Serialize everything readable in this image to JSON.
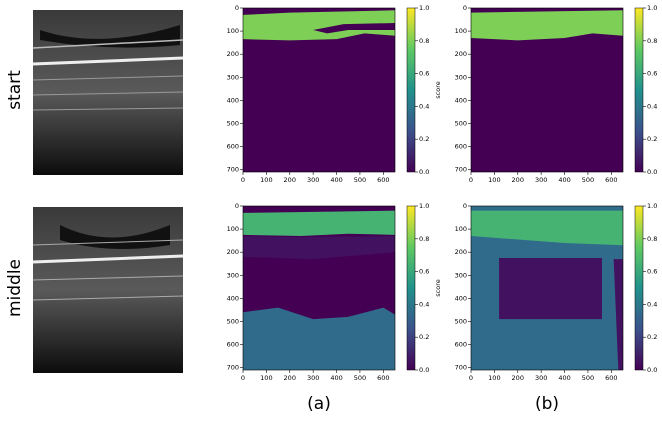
{
  "chart_data": {
    "type": "heatmap-grid",
    "columns": [
      "(a)",
      "(b)"
    ],
    "colormap": "viridis",
    "colorbar_label": "score",
    "xlim": [
      0,
      650
    ],
    "ylim": [
      0,
      710
    ],
    "y_inverted": true,
    "xticks": [
      0,
      100,
      200,
      300,
      400,
      500,
      600
    ],
    "yticks": [
      0,
      100,
      200,
      300,
      400,
      500,
      600,
      700
    ],
    "clim": [
      0,
      1
    ],
    "cticks": [
      {
        "value": 0,
        "label": "0.0"
      },
      {
        "value": 0.2,
        "label": "0.2"
      },
      {
        "value": 0.4,
        "label": "0.4"
      },
      {
        "value": 0.6,
        "label": "0.6"
      },
      {
        "value": 0.8,
        "label": "0.8"
      },
      {
        "value": 1,
        "label": "1.0"
      }
    ],
    "rows": [
      {
        "label": "start",
        "panels": [
          {
            "background": 0.0,
            "regions": [
              {
                "score": 0.8,
                "points": [
                  [
                    0,
                    30
                  ],
                  [
                    200,
                    20
                  ],
                  [
                    650,
                    10
                  ],
                  [
                    650,
                    120
                  ],
                  [
                    520,
                    110
                  ],
                  [
                    400,
                    135
                  ],
                  [
                    200,
                    140
                  ],
                  [
                    0,
                    135
                  ]
                ]
              },
              {
                "score": 0.0,
                "points": [
                  [
                    300,
                    95
                  ],
                  [
                    430,
                    70
                  ],
                  [
                    650,
                    65
                  ],
                  [
                    650,
                    95
                  ],
                  [
                    450,
                    95
                  ],
                  [
                    360,
                    110
                  ]
                ]
              }
            ]
          },
          {
            "background": 0.0,
            "regions": [
              {
                "score": 0.8,
                "points": [
                  [
                    0,
                    20
                  ],
                  [
                    300,
                    15
                  ],
                  [
                    650,
                    10
                  ],
                  [
                    650,
                    120
                  ],
                  [
                    520,
                    110
                  ],
                  [
                    400,
                    130
                  ],
                  [
                    200,
                    140
                  ],
                  [
                    0,
                    130
                  ]
                ]
              }
            ]
          }
        ]
      },
      {
        "label": "middle",
        "panels": [
          {
            "background": 0.0,
            "regions": [
              {
                "score": 0.65,
                "points": [
                  [
                    0,
                    30
                  ],
                  [
                    650,
                    20
                  ],
                  [
                    650,
                    125
                  ],
                  [
                    450,
                    120
                  ],
                  [
                    250,
                    130
                  ],
                  [
                    0,
                    125
                  ]
                ]
              },
              {
                "score": 0.05,
                "points": [
                  [
                    0,
                    130
                  ],
                  [
                    250,
                    135
                  ],
                  [
                    650,
                    130
                  ],
                  [
                    650,
                    200
                  ],
                  [
                    300,
                    230
                  ],
                  [
                    0,
                    220
                  ]
                ]
              },
              {
                "score": 0.35,
                "points": [
                  [
                    0,
                    460
                  ],
                  [
                    150,
                    440
                  ],
                  [
                    300,
                    490
                  ],
                  [
                    450,
                    480
                  ],
                  [
                    600,
                    440
                  ],
                  [
                    650,
                    470
                  ],
                  [
                    650,
                    710
                  ],
                  [
                    0,
                    710
                  ]
                ]
              }
            ]
          },
          {
            "background": 0.35,
            "regions": [
              {
                "score": 0.65,
                "points": [
                  [
                    0,
                    20
                  ],
                  [
                    650,
                    20
                  ],
                  [
                    650,
                    170
                  ],
                  [
                    400,
                    160
                  ],
                  [
                    0,
                    130
                  ]
                ]
              },
              {
                "score": 0.05,
                "points": [
                  [
                    120,
                    225
                  ],
                  [
                    560,
                    225
                  ],
                  [
                    560,
                    490
                  ],
                  [
                    120,
                    490
                  ]
                ]
              },
              {
                "score": 0.05,
                "points": [
                  [
                    610,
                    230
                  ],
                  [
                    650,
                    230
                  ],
                  [
                    650,
                    710
                  ],
                  [
                    630,
                    710
                  ]
                ]
              }
            ]
          }
        ]
      }
    ]
  }
}
